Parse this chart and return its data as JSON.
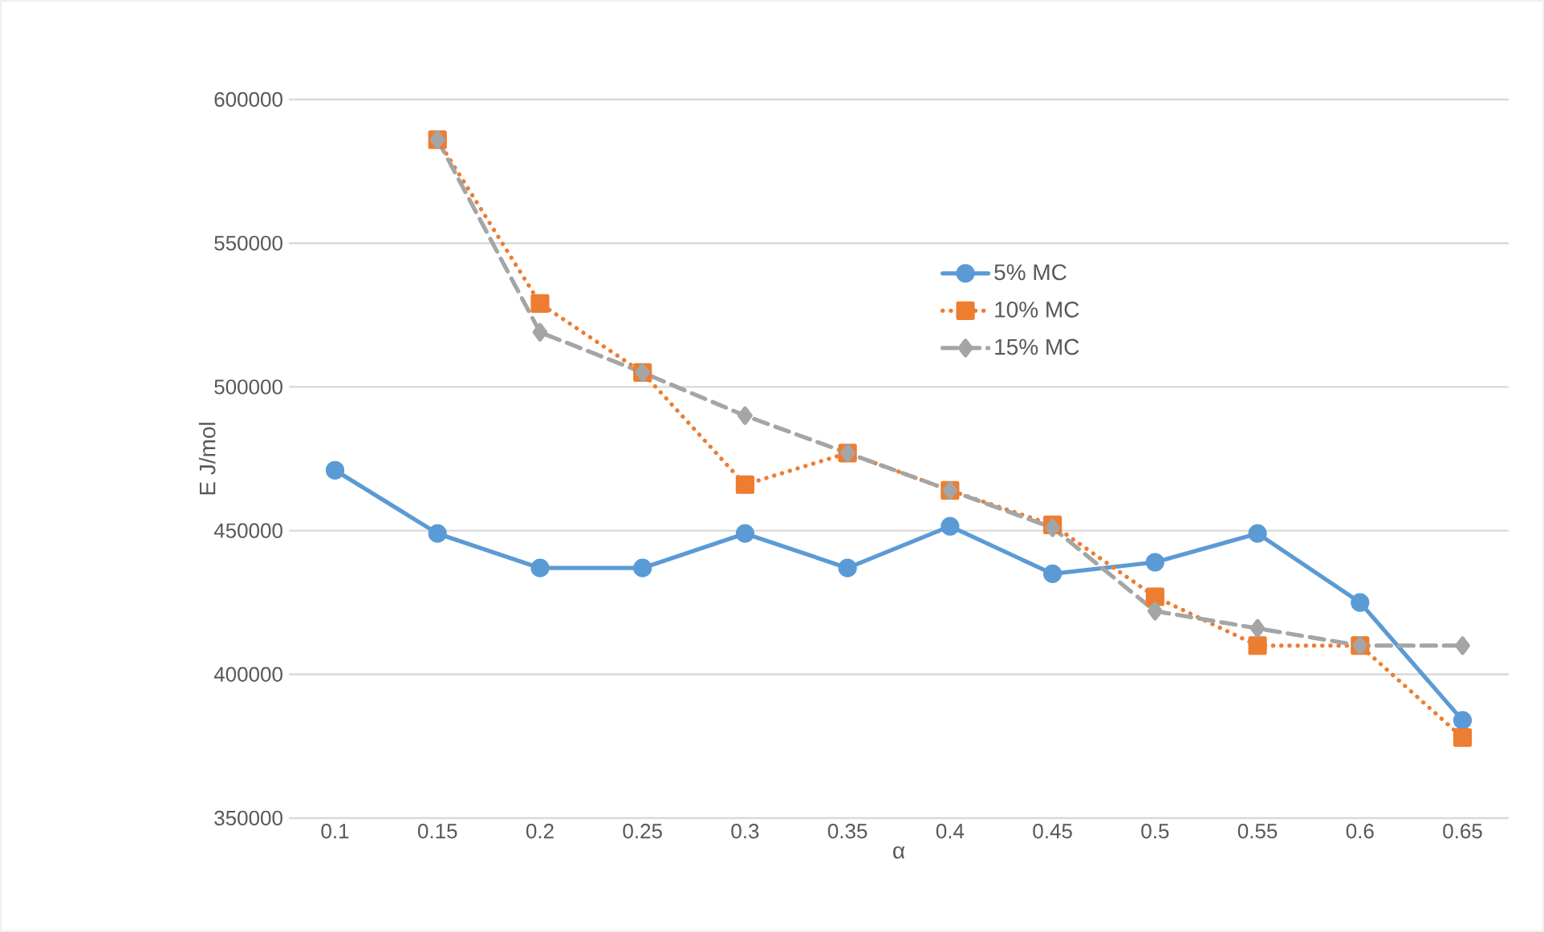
{
  "chart_data": {
    "type": "line",
    "xlabel": "α",
    "ylabel": "E J/mol",
    "categories": [
      "0.1",
      "0.15",
      "0.2",
      "0.25",
      "0.3",
      "0.35",
      "0.4",
      "0.45",
      "0.5",
      "0.55",
      "0.6",
      "0.65"
    ],
    "series": [
      {
        "name": "5% MC",
        "color": "#5b9bd5",
        "marker": "circle",
        "line_style": "solid",
        "values": [
          471000,
          449000,
          437000,
          437000,
          449000,
          437000,
          451500,
          435000,
          439000,
          449000,
          425000,
          384000
        ]
      },
      {
        "name": "10% MC",
        "color": "#ed7d31",
        "marker": "square",
        "line_style": "dotted",
        "values": [
          null,
          586000,
          529000,
          505000,
          466000,
          477000,
          464000,
          452000,
          427000,
          410000,
          410000,
          378000
        ]
      },
      {
        "name": "15% MC",
        "color": "#a5a5a5",
        "marker": "diamond",
        "line_style": "dashed",
        "values": [
          null,
          586000,
          519000,
          505000,
          490000,
          477000,
          464000,
          451000,
          422000,
          416000,
          410000,
          410000
        ]
      }
    ],
    "ylim": [
      350000,
      600000
    ],
    "yticks": [
      350000,
      400000,
      450000,
      500000,
      550000,
      600000
    ],
    "grid": "y",
    "legend": "top right"
  }
}
